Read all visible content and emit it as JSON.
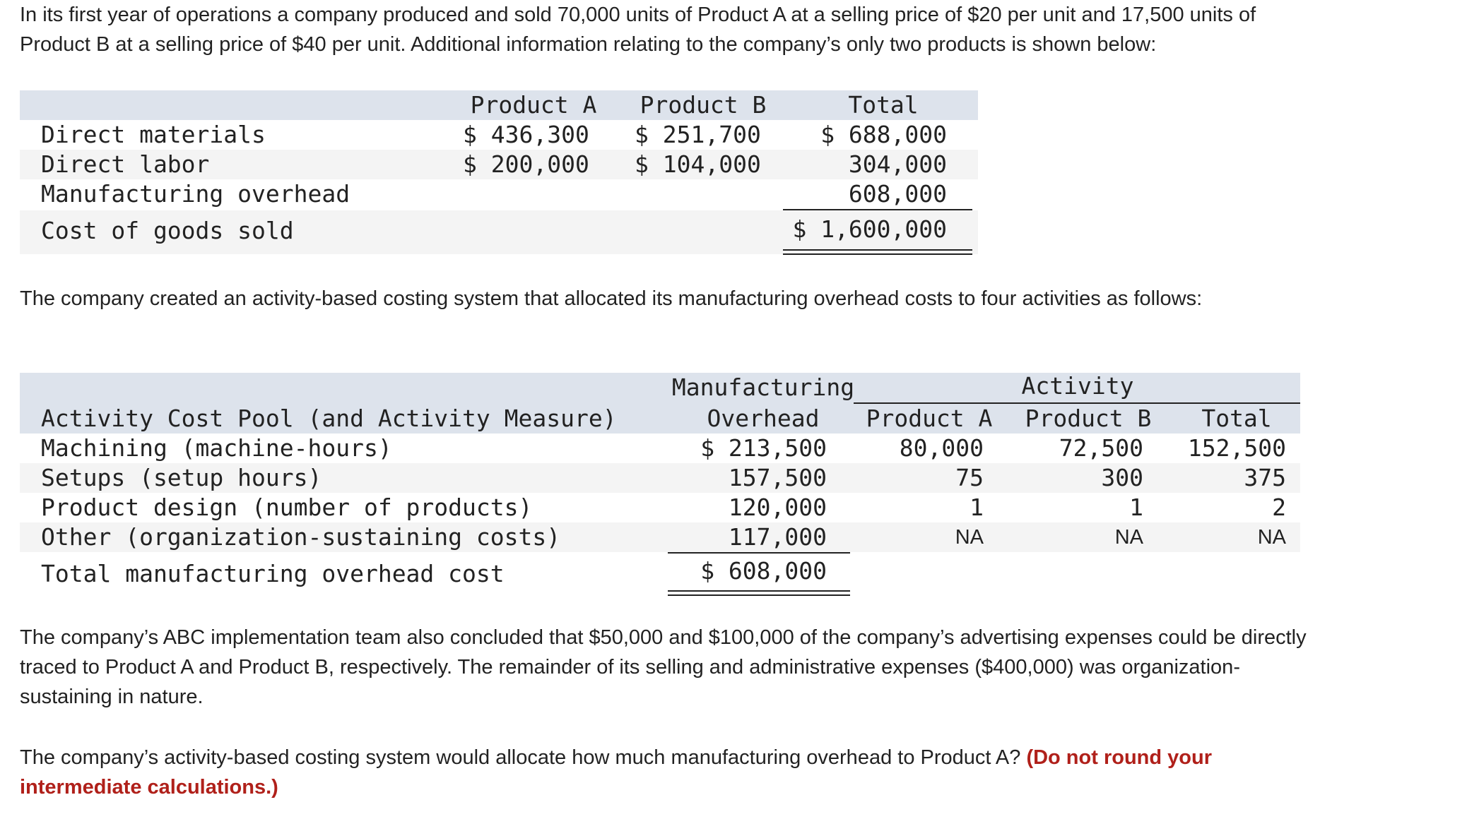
{
  "intro": {
    "line1": "In its first year of operations a company produced and sold 70,000 units of Product A at a selling price of $20 per unit and 17,500 units of",
    "line2": "Product B at a selling price of $40 per unit. Additional information relating to the company’s only two products is shown below:"
  },
  "cost_table": {
    "headers": [
      "Product A",
      "Product B",
      "Total"
    ],
    "rows": [
      {
        "label": "Direct materials",
        "a": "$ 436,300",
        "b": "$ 251,700",
        "total": "$ 688,000"
      },
      {
        "label": "Direct labor",
        "a": "$ 200,000",
        "b": "$ 104,000",
        "total": "304,000"
      },
      {
        "label": "Manufacturing overhead",
        "a": "",
        "b": "",
        "total": "608,000"
      }
    ],
    "cogs": {
      "label": "Cost of goods sold",
      "total": "$ 1,600,000"
    }
  },
  "abc_intro": "The company created an activity-based costing system that allocated its manufacturing overhead costs to four activities as follows:",
  "abc_table": {
    "overhead_header_1": "Manufacturing",
    "overhead_header_2": "Overhead",
    "activity_header": "Activity",
    "pool_header": "Activity Cost Pool (and Activity Measure)",
    "col_a": "Product A",
    "col_b": "Product B",
    "col_total": "Total",
    "rows": [
      {
        "label": "Machining (machine-hours)",
        "overhead": "$ 213,500",
        "a": "80,000",
        "b": "72,500",
        "total": "152,500"
      },
      {
        "label": "Setups (setup hours)",
        "overhead": "157,500",
        "a": "75",
        "b": "300",
        "total": "375"
      },
      {
        "label": "Product design (number of products)",
        "overhead": "120,000",
        "a": "1",
        "b": "1",
        "total": "2"
      },
      {
        "label": "Other (organization-sustaining costs)",
        "overhead": "117,000",
        "a": "NA",
        "b": "NA",
        "total": "NA"
      }
    ],
    "total_row": {
      "label": "Total manufacturing overhead cost",
      "overhead": "$ 608,000"
    }
  },
  "advertising": {
    "line1": "The company’s ABC implementation team also concluded that $50,000 and $100,000 of the company’s advertising expenses could be directly",
    "line2": "traced to Product A and Product B, respectively. The remainder of its selling and administrative expenses ($400,000) was organization-",
    "line3": "sustaining in nature."
  },
  "question": {
    "line1": "The company’s activity-based costing system would allocate how much manufacturing overhead to Product A?",
    "note_part1": "(Do not round your",
    "note_part2": "intermediate calculations.)"
  }
}
